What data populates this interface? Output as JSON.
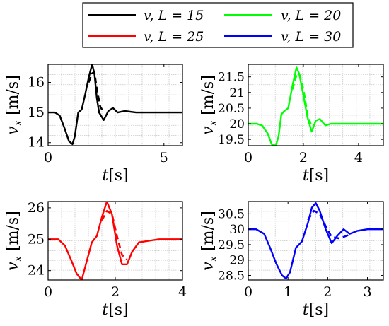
{
  "legend": {
    "entries": [
      {
        "label": "v, L = 15",
        "color": "#000000"
      },
      {
        "label": "v, L = 20",
        "color": "#00ff00"
      },
      {
        "label": "v, L = 25",
        "color": "#ff0000"
      },
      {
        "label": "v, L = 30",
        "color": "#0000ff"
      }
    ]
  },
  "chart_data": [
    {
      "type": "line",
      "ylabel": "v_x [m/s]",
      "xlabel": "t[s]",
      "xlim": [
        0,
        5.8
      ],
      "ylim": [
        13.9,
        16.6
      ],
      "xticks": [
        "0",
        "5"
      ],
      "xtick_values": [
        0,
        5
      ],
      "yticks": [
        "14",
        "15",
        "16"
      ],
      "ytick_values": [
        14,
        15,
        16
      ],
      "grid": true,
      "color": "#000000",
      "series": [
        {
          "style": "solid",
          "x": [
            0,
            0.3,
            0.5,
            0.7,
            0.9,
            1.05,
            1.15,
            1.3,
            1.45,
            1.6,
            1.75,
            1.9,
            2.0,
            2.1,
            2.2,
            2.4,
            2.6,
            2.8,
            3.0,
            3.3,
            3.8,
            4.5,
            5.8
          ],
          "y": [
            15.0,
            15.0,
            14.9,
            14.5,
            14.05,
            13.95,
            14.2,
            15.0,
            15.1,
            15.6,
            16.15,
            16.6,
            16.3,
            15.5,
            15.0,
            14.75,
            15.05,
            15.15,
            15.0,
            15.05,
            15.0,
            15.0,
            15.0
          ]
        },
        {
          "style": "dashed",
          "x": [
            1.75,
            1.9,
            2.0,
            2.1,
            2.25,
            2.4
          ],
          "y": [
            16.0,
            16.3,
            16.35,
            15.8,
            15.2,
            15.0
          ]
        }
      ]
    },
    {
      "type": "line",
      "ylabel": "v_x [m/s]",
      "xlabel": "t[s]",
      "xlim": [
        0,
        4.9
      ],
      "ylim": [
        19.3,
        21.9
      ],
      "xticks": [
        "0",
        "2",
        "4"
      ],
      "xtick_values": [
        0,
        2,
        4
      ],
      "yticks": [
        "19.5",
        "20",
        "20.5",
        "21",
        "21.5"
      ],
      "ytick_values": [
        19.5,
        20,
        20.5,
        21,
        21.5
      ],
      "grid": true,
      "color": "#00ff00",
      "series": [
        {
          "style": "solid",
          "x": [
            0,
            0.3,
            0.5,
            0.7,
            0.85,
            1.0,
            1.1,
            1.2,
            1.3,
            1.45,
            1.6,
            1.75,
            1.85,
            2.0,
            2.15,
            2.3,
            2.45,
            2.6,
            2.8,
            3.0,
            3.5,
            4.0,
            4.9
          ],
          "y": [
            20.0,
            20.0,
            19.95,
            19.7,
            19.35,
            19.3,
            19.6,
            20.3,
            20.4,
            20.5,
            21.2,
            21.8,
            21.6,
            20.9,
            20.2,
            19.75,
            20.1,
            20.15,
            19.95,
            20.0,
            20.0,
            20.0,
            20.0
          ]
        },
        {
          "style": "dashed",
          "x": [
            1.6,
            1.75,
            1.85,
            2.0,
            2.15,
            2.3
          ],
          "y": [
            21.1,
            21.55,
            21.6,
            21.1,
            20.3,
            19.9
          ]
        }
      ]
    },
    {
      "type": "line",
      "ylabel": "v_x [m/s]",
      "xlabel": "t[s]",
      "xlim": [
        0,
        4.0
      ],
      "ylim": [
        23.7,
        26.2
      ],
      "xticks": [
        "0",
        "2",
        "4"
      ],
      "xtick_values": [
        0,
        2,
        4
      ],
      "yticks": [
        "24",
        "25",
        "26"
      ],
      "ytick_values": [
        24,
        25,
        26
      ],
      "grid": true,
      "color": "#ff0000",
      "series": [
        {
          "style": "solid",
          "x": [
            0,
            0.3,
            0.5,
            0.7,
            0.85,
            1.0,
            1.15,
            1.3,
            1.45,
            1.6,
            1.75,
            1.9,
            2.05,
            2.2,
            2.35,
            2.5,
            2.7,
            3.0,
            3.3,
            4.0
          ],
          "y": [
            25.0,
            25.0,
            24.8,
            24.3,
            23.9,
            23.7,
            24.3,
            24.9,
            25.1,
            25.7,
            26.2,
            25.8,
            24.8,
            24.2,
            24.2,
            24.6,
            24.9,
            24.95,
            25.0,
            25.0
          ]
        },
        {
          "style": "dashed",
          "x": [
            1.6,
            1.75,
            1.9,
            2.05,
            2.2,
            2.35
          ],
          "y": [
            25.6,
            25.9,
            25.8,
            25.1,
            24.5,
            24.35
          ]
        }
      ]
    },
    {
      "type": "line",
      "ylabel": "v_x [m/s]",
      "xlabel": "t[s]",
      "xlim": [
        0,
        3.4
      ],
      "ylim": [
        28.35,
        30.9
      ],
      "xticks": [
        "0",
        "1",
        "2",
        "3"
      ],
      "xtick_values": [
        0,
        1,
        2,
        3
      ],
      "yticks": [
        "28.5",
        "29",
        "29.5",
        "30",
        "30.5"
      ],
      "ytick_values": [
        28.5,
        29,
        29.5,
        30,
        30.5
      ],
      "grid": true,
      "color": "#0000ff",
      "series": [
        {
          "style": "solid",
          "x": [
            0,
            0.2,
            0.4,
            0.55,
            0.7,
            0.85,
            0.95,
            1.05,
            1.2,
            1.35,
            1.5,
            1.6,
            1.7,
            1.8,
            1.95,
            2.1,
            2.25,
            2.4,
            2.55,
            2.75,
            3.0,
            3.4
          ],
          "y": [
            30.0,
            30.0,
            29.85,
            29.4,
            28.9,
            28.5,
            28.4,
            28.6,
            29.4,
            29.6,
            30.2,
            30.7,
            30.85,
            30.6,
            30.0,
            29.55,
            29.8,
            30.0,
            29.85,
            29.95,
            30.0,
            30.0
          ]
        },
        {
          "style": "dashed",
          "x": [
            1.5,
            1.65,
            1.8,
            1.95,
            2.1,
            2.3,
            2.6
          ],
          "y": [
            30.3,
            30.6,
            30.5,
            30.1,
            29.75,
            29.7,
            29.85
          ]
        }
      ]
    }
  ]
}
